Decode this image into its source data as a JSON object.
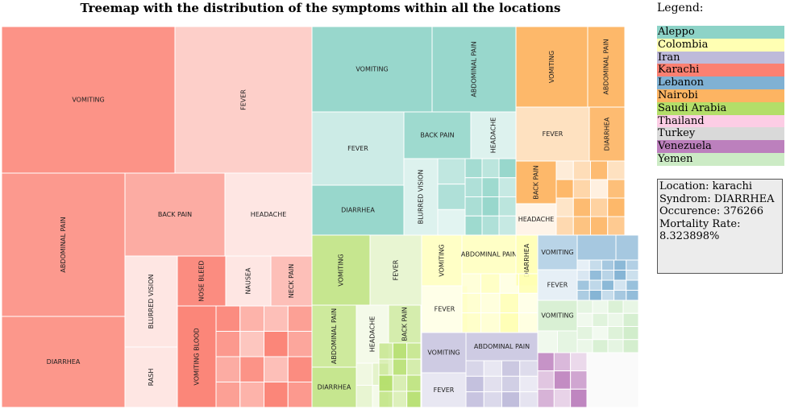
{
  "chart_data": {
    "type": "treemap",
    "title": "Treemap with the distribution of the symptoms within all the locations",
    "legend_title": "Legend:",
    "legend": [
      {
        "label": "Aleppo",
        "color": "#8dd3c7"
      },
      {
        "label": "Colombia",
        "color": "#ffffb3"
      },
      {
        "label": "Iran",
        "color": "#bebada"
      },
      {
        "label": "Karachi",
        "color": "#fb8072"
      },
      {
        "label": "Lebanon",
        "color": "#80b1d3"
      },
      {
        "label": "Nairobi",
        "color": "#fdb462"
      },
      {
        "label": "Saudi Arabia",
        "color": "#b3de69"
      },
      {
        "label": "Thailand",
        "color": "#fccde5"
      },
      {
        "label": "Turkey",
        "color": "#d9d9d9"
      },
      {
        "label": "Venezuela",
        "color": "#bc80bd"
      },
      {
        "label": "Yemen",
        "color": "#ccebc5"
      }
    ],
    "tooltip": {
      "location": "Location: karachi",
      "syndrom": "Syndrom: DIARRHEA",
      "occurence": "Occurence: 376266",
      "mortality_label": "Mortality Rate:",
      "mortality_value": "8.323898%"
    },
    "locations": [
      {
        "name": "Karachi",
        "symptoms": [
          "VOMITING",
          "FEVER",
          "ABDOMINAL PAIN",
          "BACK PAIN",
          "HEADACHE",
          "DIARRHEA",
          "BLURRED VISION",
          "NOSE BLEED",
          "NAUSEA",
          "NECK PAIN",
          "VOMITING BLOOD",
          "RASH"
        ]
      },
      {
        "name": "Aleppo",
        "symptoms": [
          "VOMITING",
          "ABDOMINAL PAIN",
          "FEVER",
          "BACK PAIN",
          "HEADACHE",
          "BLURRED VISION",
          "DIARRHEA"
        ]
      },
      {
        "name": "Nairobi",
        "symptoms": [
          "VOMITING",
          "ABDOMINAL PAIN",
          "FEVER",
          "DIARRHEA",
          "BACK PAIN",
          "HEADACHE"
        ]
      },
      {
        "name": "Saudi Arabia",
        "symptoms": [
          "VOMITING",
          "FEVER",
          "ABDOMINAL PAIN",
          "HEADACHE",
          "BACK PAIN",
          "DIARRHEA"
        ]
      },
      {
        "name": "Colombia",
        "symptoms": [
          "VOMITING",
          "ABDOMINAL PAIN",
          "DIARRHEA",
          "FEVER"
        ]
      },
      {
        "name": "Lebanon",
        "symptoms": [
          "VOMITING",
          "FEVER"
        ]
      },
      {
        "name": "Yemen",
        "symptoms": [
          "VOMITING"
        ]
      },
      {
        "name": "Iran",
        "symptoms": [
          "VOMITING",
          "ABDOMINAL PAIN",
          "FEVER"
        ]
      },
      {
        "name": "Venezuela",
        "symptoms": []
      },
      {
        "name": "Thailand",
        "symptoms": []
      },
      {
        "name": "Turkey",
        "symptoms": []
      }
    ]
  }
}
